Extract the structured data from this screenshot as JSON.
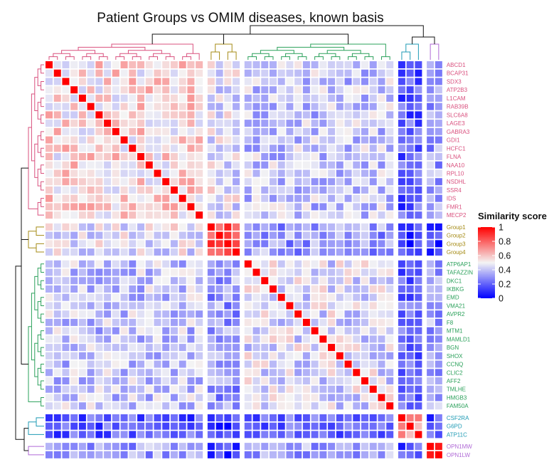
{
  "chart_data": {
    "type": "heatmap",
    "title": "Patient Groups vs OMIM diseases, known basis",
    "labels": [
      "ABCD1",
      "BCAP31",
      "SDX3",
      "ATP2B3",
      "L1CAM",
      "RAB39B",
      "SLC6A8",
      "LAGE3",
      "GABRA3",
      "GDI1",
      "HCFC1",
      "FLNA",
      "NAA10",
      "RPL10",
      "NSDHL",
      "SSR4",
      "IDS",
      "FMR1",
      "MECP2",
      "Group1",
      "Group2",
      "Group3",
      "Group4",
      "ATP6AP1",
      "TAFAZZIN",
      "DKC1",
      "IKBKG",
      "EMD",
      "VMA21",
      "AVPR2",
      "F8",
      "MTM1",
      "MAMLD1",
      "BGN",
      "SHOX",
      "CCNQ",
      "CLIC2",
      "AFF2",
      "TMLHE",
      "HMGB3",
      "FAM50A",
      "CSF2RA",
      "G6PD",
      "ATP11C",
      "OPN1MW",
      "OPN1LW"
    ],
    "clusters": [
      {
        "members": [
          "ABCD1",
          "BCAP31",
          "SDX3",
          "ATP2B3",
          "L1CAM",
          "RAB39B",
          "SLC6A8",
          "LAGE3",
          "GABRA3",
          "GDI1",
          "HCFC1",
          "FLNA",
          "NAA10",
          "RPL10",
          "NSDHL",
          "SSR4",
          "IDS",
          "FMR1",
          "MECP2"
        ],
        "color": "#d9507e"
      },
      {
        "members": [
          "Group1",
          "Group2",
          "Group3",
          "Group4"
        ],
        "color": "#a58b16"
      },
      {
        "members": [
          "ATP6AP1",
          "TAFAZZIN",
          "DKC1",
          "IKBKG",
          "EMD",
          "VMA21",
          "AVPR2",
          "F8",
          "MTM1",
          "MAMLD1",
          "BGN",
          "SHOX",
          "CCNQ",
          "CLIC2",
          "AFF2",
          "TMLHE",
          "HMGB3",
          "FAM50A"
        ],
        "color": "#2aa05a"
      },
      {
        "members": [
          "CSF2RA",
          "G6PD",
          "ATP11C"
        ],
        "color": "#1f9bb5"
      },
      {
        "members": [
          "OPN1MW",
          "OPN1LW"
        ],
        "color": "#b06ad6"
      }
    ],
    "block_mean_similarity": [
      [
        0.55,
        0.47,
        0.4,
        0.18,
        0.32
      ],
      [
        0.47,
        0.85,
        0.32,
        0.1,
        0.12
      ],
      [
        0.4,
        0.32,
        0.45,
        0.2,
        0.32
      ],
      [
        0.18,
        0.1,
        0.2,
        0.7,
        0.15
      ],
      [
        0.32,
        0.12,
        0.32,
        0.15,
        0.95
      ]
    ],
    "diagonal_value": 1,
    "color_scale": {
      "min": 0,
      "mid": 0.5,
      "max": 1,
      "low_color": "#0000ff",
      "mid_color": "#f4f4f4",
      "high_color": "#ff0000"
    },
    "legend": {
      "title": "Similarity score",
      "ticks": [
        "1",
        "0.8",
        "0.6",
        "0.4",
        "0.2",
        "0"
      ],
      "position": "right"
    },
    "dendrogram_root_color": "#111111"
  }
}
